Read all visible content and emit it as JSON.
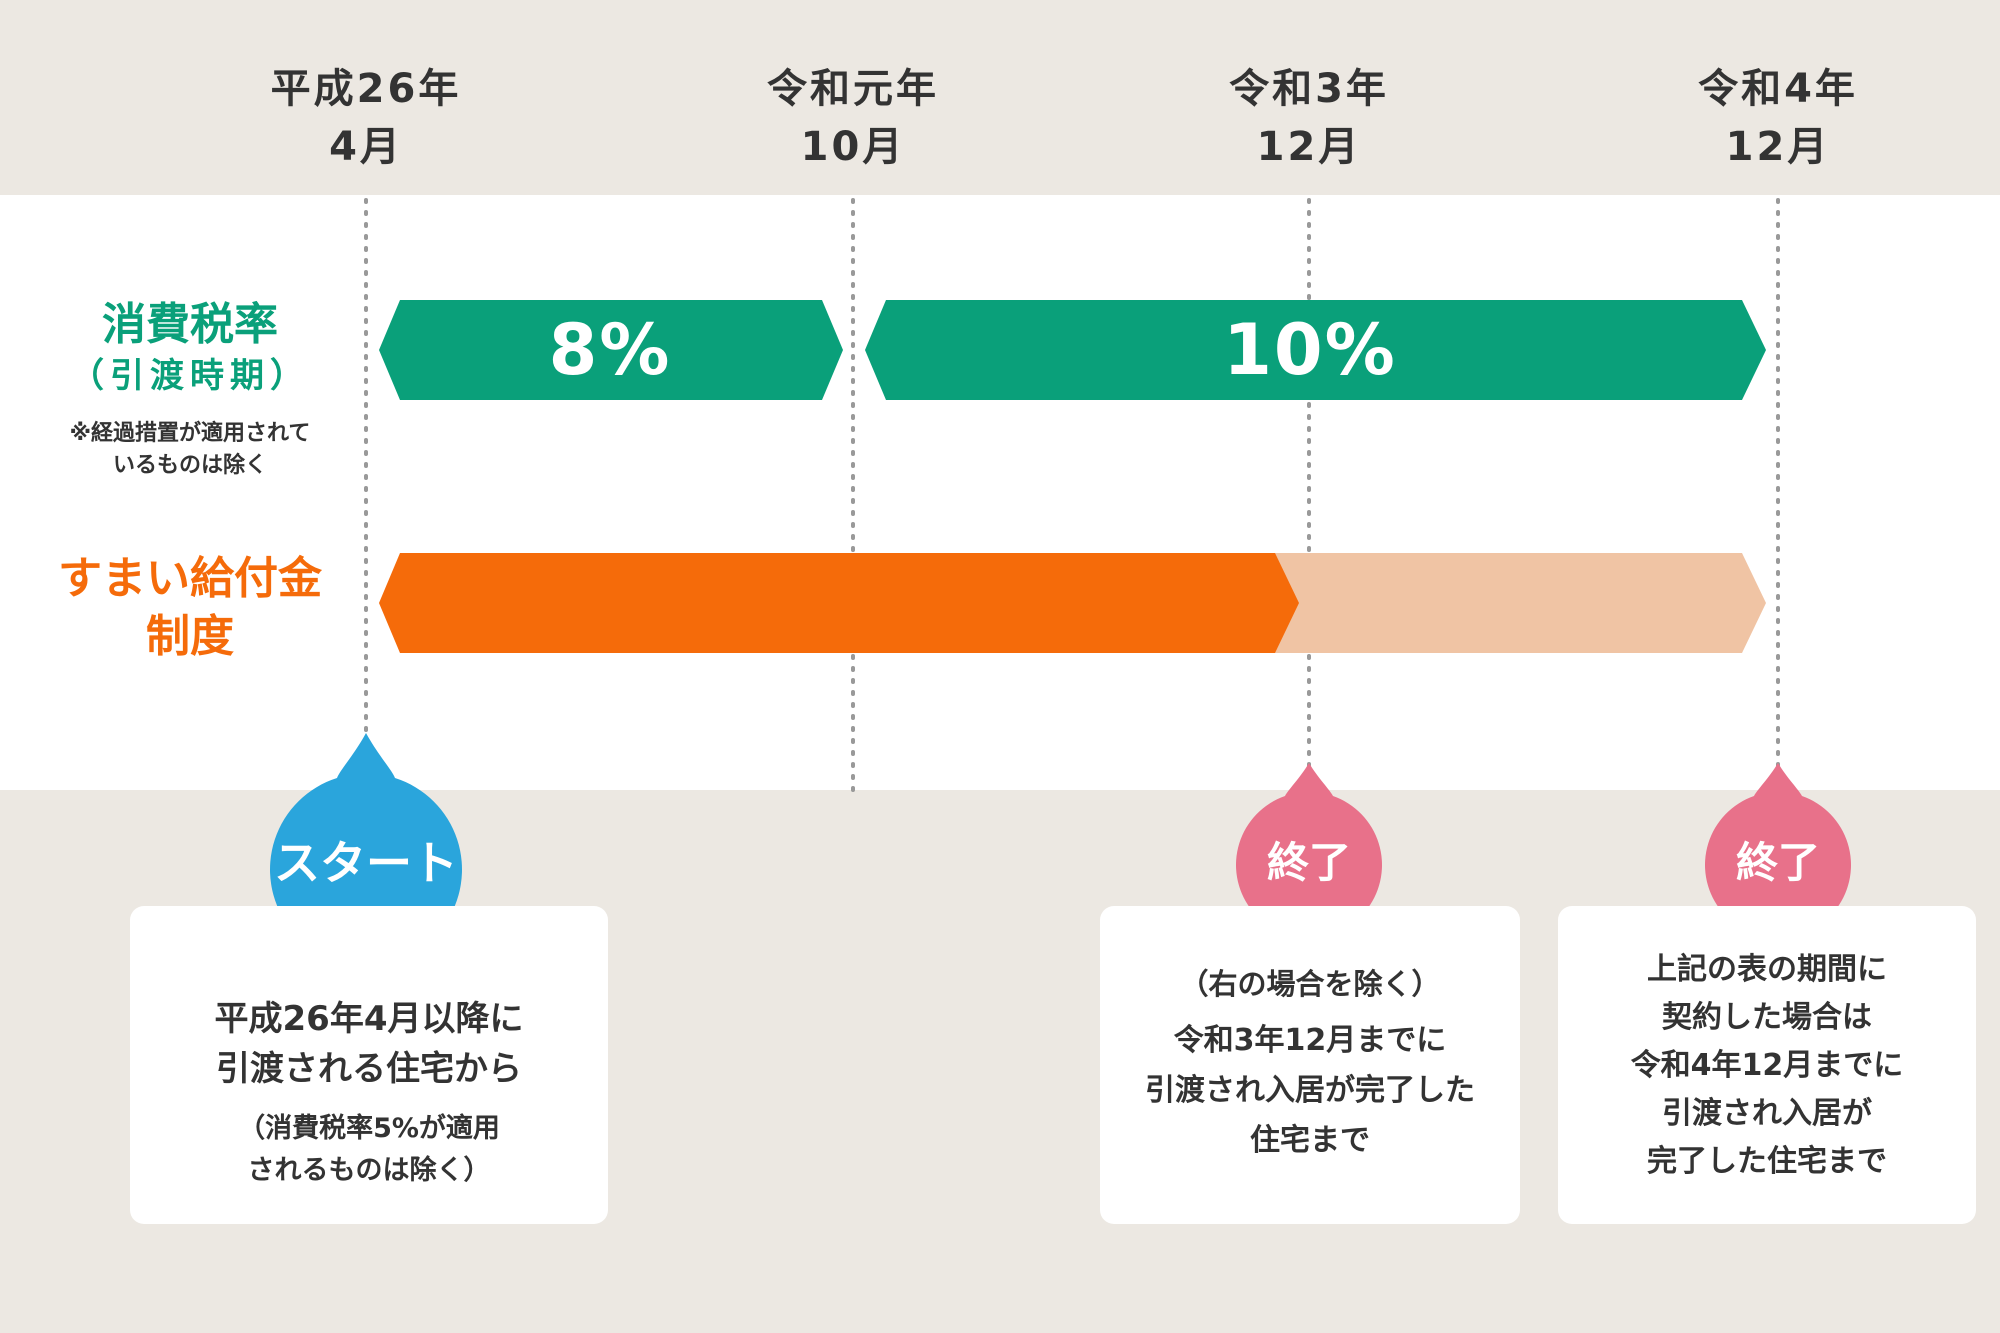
{
  "dates": [
    {
      "line1": "平成26年",
      "line2": "4月"
    },
    {
      "line1": "令和元年",
      "line2": "10月"
    },
    {
      "line1": "令和3年",
      "line2": "12月"
    },
    {
      "line1": "令和4年",
      "line2": "12月"
    }
  ],
  "tax_row": {
    "title": "消費税率",
    "subtitle": "（引渡時期）",
    "note_line1": "※経過措置が適用されて",
    "note_line2": "いるものは除く",
    "rate_8": "8%",
    "rate_10": "10%",
    "color": "#0aa07a"
  },
  "sumai_row": {
    "title_line1": "すまい給付金",
    "title_line2": "制度",
    "color": "#f56b0a",
    "faded_color": "#f0c4a4"
  },
  "markers": {
    "start": {
      "label": "スタート",
      "color": "#2aa5dc"
    },
    "end1": {
      "label": "終了",
      "color": "#e8718a"
    },
    "end2": {
      "label": "終了",
      "color": "#e8718a"
    }
  },
  "cards": {
    "start": {
      "line1": "平成26年4月以降に",
      "line2": "引渡される住宅から",
      "note1": "（消費税率5%が適用",
      "note2": "されるものは除く）"
    },
    "end1": {
      "heading": "（右の場合を除く）",
      "line1": "令和3年12月までに",
      "line2": "引渡され入居が完了した",
      "line3": "住宅まで"
    },
    "end2": {
      "line1": "上記の表の期間に",
      "line2": "契約した場合は",
      "line3": "令和4年12月までに",
      "line4": "引渡され入居が",
      "line5": "完了した住宅まで"
    }
  }
}
